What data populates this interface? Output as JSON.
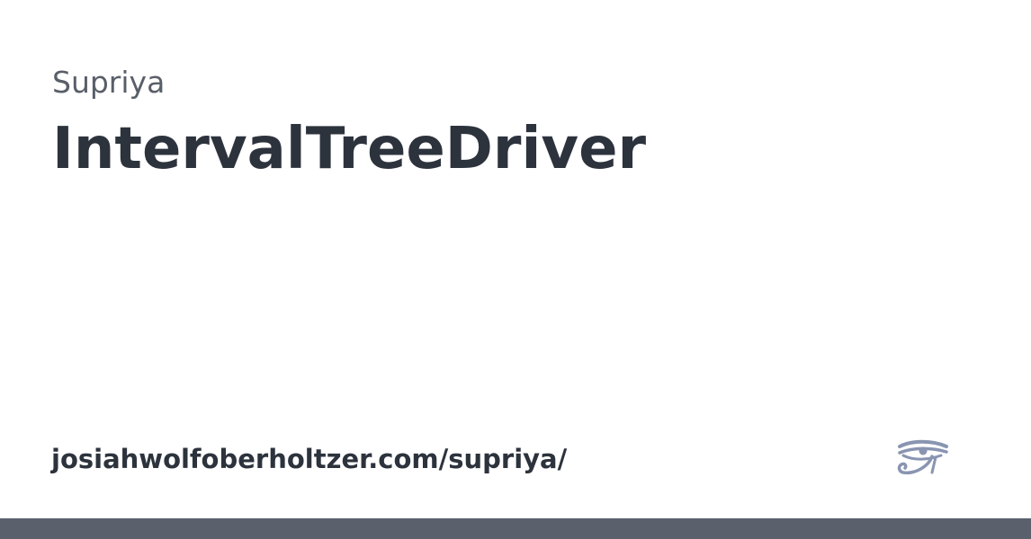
{
  "site": {
    "name": "Supriya",
    "url": "josiahwolfoberholtzer.com/supriya/"
  },
  "page": {
    "title": "IntervalTreeDriver"
  },
  "logo": {
    "icon": "eye-of-horus-icon",
    "color": "#8995b1"
  },
  "colors": {
    "background": "#ffffff",
    "title": "#2d333d",
    "site_name": "#595f69",
    "bottom_bar": "#5a616d"
  }
}
